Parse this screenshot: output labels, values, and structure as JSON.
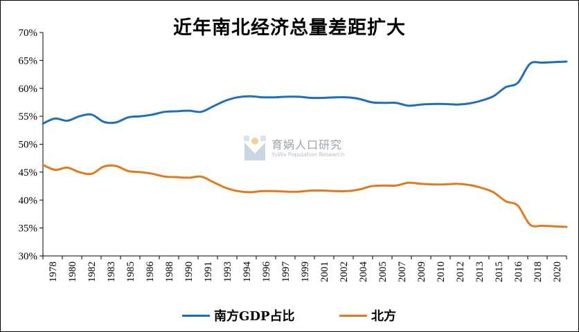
{
  "chart_data": {
    "type": "line",
    "title": "近年南北经济总量差距扩大",
    "x": [
      1978,
      1979,
      1980,
      1981,
      1982,
      1983,
      1984,
      1985,
      1986,
      1987,
      1988,
      1989,
      1990,
      1991,
      1992,
      1993,
      1994,
      1995,
      1996,
      1997,
      1998,
      1999,
      2000,
      2001,
      2002,
      2003,
      2004,
      2005,
      2006,
      2007,
      2008,
      2009,
      2010,
      2011,
      2012,
      2013,
      2014,
      2015,
      2016,
      2017,
      2018,
      2019,
      2020,
      2021
    ],
    "x_tick_labels": [
      "1978",
      "1980",
      "1982",
      "1983",
      "1985",
      "1986",
      "1988",
      "1990",
      "1991",
      "1993",
      "1994",
      "1996",
      "1997",
      "1999",
      "2001",
      "2002",
      "2004",
      "2005",
      "2007",
      "2009",
      "2010",
      "2012",
      "2013",
      "2015",
      "2016",
      "2018",
      "2020"
    ],
    "y_tick_labels": [
      "30%",
      "35%",
      "40%",
      "45%",
      "50%",
      "55%",
      "60%",
      "65%",
      "70%"
    ],
    "ylim": [
      30,
      70
    ],
    "y_ticks": [
      30,
      35,
      40,
      45,
      50,
      55,
      60,
      65,
      70
    ],
    "grid": false,
    "legend_position": "bottom",
    "series": [
      {
        "name": "南方GDP占比",
        "color": "#1f6fb8",
        "values": [
          53.7,
          54.6,
          54.2,
          55.0,
          55.3,
          54.0,
          53.9,
          54.8,
          55.0,
          55.3,
          55.8,
          55.9,
          56.0,
          55.8,
          56.8,
          57.8,
          58.4,
          58.6,
          58.4,
          58.4,
          58.5,
          58.5,
          58.3,
          58.3,
          58.4,
          58.4,
          58.1,
          57.5,
          57.4,
          57.4,
          56.9,
          57.1,
          57.2,
          57.2,
          57.1,
          57.3,
          57.8,
          58.6,
          60.2,
          61.0,
          64.4,
          64.6,
          64.7,
          64.8
        ]
      },
      {
        "name": "北方",
        "color": "#e07a1c",
        "values": [
          46.3,
          45.4,
          45.8,
          45.0,
          44.7,
          46.0,
          46.1,
          45.2,
          45.0,
          44.7,
          44.2,
          44.1,
          44.0,
          44.2,
          43.2,
          42.2,
          41.6,
          41.4,
          41.6,
          41.6,
          41.5,
          41.5,
          41.7,
          41.7,
          41.6,
          41.6,
          41.9,
          42.5,
          42.6,
          42.6,
          43.1,
          42.9,
          42.8,
          42.8,
          42.9,
          42.7,
          42.2,
          41.4,
          39.8,
          39.0,
          35.6,
          35.4,
          35.3,
          35.2
        ]
      }
    ]
  },
  "watermark": {
    "name": "育娲人口研究",
    "english": "YuWa Population Research"
  }
}
